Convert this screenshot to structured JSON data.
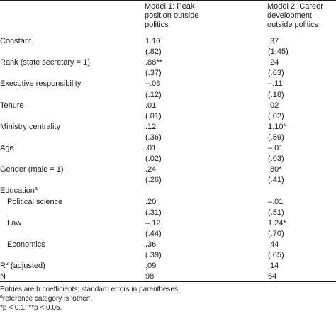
{
  "headers": {
    "col1": [
      "Model 1: Peak",
      "position outside",
      "politics"
    ],
    "col2": [
      "Model 2: Career",
      "development",
      "outside politics"
    ]
  },
  "rows": [
    {
      "label": "Constant",
      "c1": "1.10",
      "c2": ".37",
      "indent": false
    },
    {
      "label": "",
      "c1": "(.82)",
      "c2": "(1.45)",
      "indent": false
    },
    {
      "label": "Rank (state secretary = 1)",
      "c1": ".88**",
      "c2": ".24",
      "indent": false
    },
    {
      "label": "",
      "c1": "(.37)",
      "c2": "(.63)",
      "indent": false
    },
    {
      "label": "Executive responsibility",
      "c1": "–.08",
      "c2": "–.11",
      "indent": false
    },
    {
      "label": "",
      "c1": "(.12)",
      "c2": "(.18)",
      "indent": false
    },
    {
      "label": "Tenure",
      "c1": ".01",
      "c2": ".02",
      "indent": false
    },
    {
      "label": "",
      "c1": "(.01)",
      "c2": "(.02)",
      "indent": false
    },
    {
      "label": "Ministry centrality",
      "c1": ".12",
      "c2": "1.10*",
      "indent": false
    },
    {
      "label": "",
      "c1": "(.36)",
      "c2": "(.59)",
      "indent": false
    },
    {
      "label": "Age",
      "c1": ".01",
      "c2": "–.01",
      "indent": false
    },
    {
      "label": "",
      "c1": "(.02)",
      "c2": "(.03)",
      "indent": false
    },
    {
      "label": "Gender (male = 1)",
      "c1": ".24",
      "c2": ".80*",
      "indent": false
    },
    {
      "label": "",
      "c1": "(.26)",
      "c2": "(.41)",
      "indent": false
    },
    {
      "label": "Education",
      "sup": "a",
      "c1": "",
      "c2": "",
      "indent": false
    },
    {
      "label": "Political science",
      "c1": ".20",
      "c2": "–.01",
      "indent": true
    },
    {
      "label": "",
      "c1": "(.31)",
      "c2": "(.51)",
      "indent": false
    },
    {
      "label": "Law",
      "c1": "–.12",
      "c2": "1.24*",
      "indent": true
    },
    {
      "label": "",
      "c1": "(.44)",
      "c2": "(.70)",
      "indent": false
    },
    {
      "label": "Economics",
      "c1": ".36",
      "c2": ".44",
      "indent": true
    },
    {
      "label": "",
      "c1": "(.39)",
      "c2": "(.65)",
      "indent": false
    },
    {
      "label": "R",
      "sup": "2",
      "suffix": " (adjusted)",
      "c1": ".09",
      "c2": ".14",
      "indent": false
    },
    {
      "label": "N",
      "c1": "98",
      "c2": "64",
      "indent": false
    }
  ],
  "notes": {
    "line1": "Entries are b coefficients; standard errors in parentheses.",
    "line2_sup": "a",
    "line2": "reference category is ‘other’.",
    "line3": "*p < 0.1; **p < 0.05."
  }
}
